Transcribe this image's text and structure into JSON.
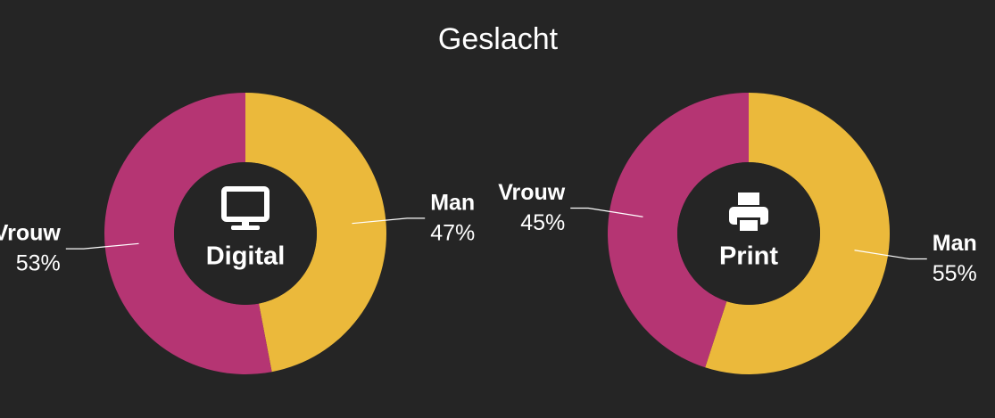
{
  "title": "Geslacht",
  "chart_data": [
    {
      "type": "pie",
      "center_label": "Digital",
      "categories": [
        "Man",
        "Vrouw"
      ],
      "values": [
        47,
        53
      ],
      "value_labels": [
        "47%",
        "53%"
      ],
      "colors": [
        "#ebb93b",
        "#b53573"
      ]
    },
    {
      "type": "pie",
      "center_label": "Print",
      "categories": [
        "Man",
        "Vrouw"
      ],
      "values": [
        55,
        45
      ],
      "value_labels": [
        "55%",
        "45%"
      ],
      "colors": [
        "#ebb93b",
        "#b53573"
      ]
    }
  ]
}
